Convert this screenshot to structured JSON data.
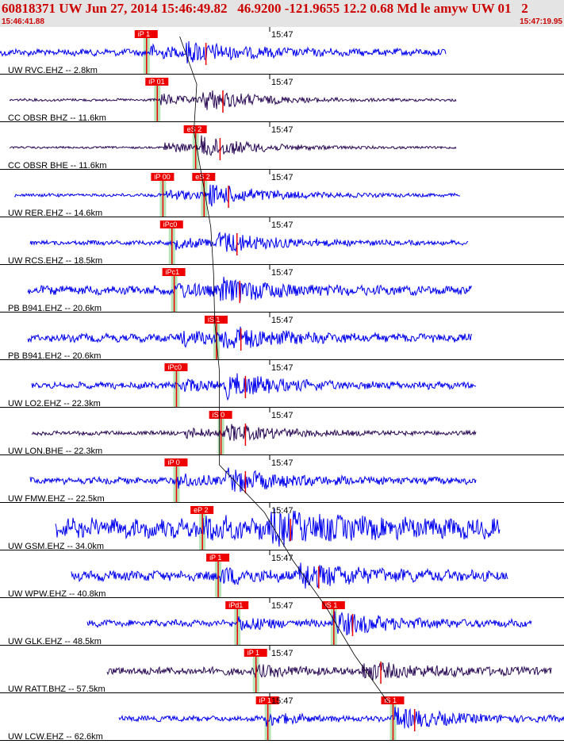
{
  "header": {
    "title": "60818371 UW Jun 27, 2014 15:46:49.82   46.9200 -121.9655 12.2 0.68 Md le amyw UW 01   2",
    "start_time": "15:46:41.88",
    "end_time": "15:47:19.95"
  },
  "colors": {
    "header_bg": "#e4e4e4",
    "header_text": "#cc0000",
    "trace_blue": "#0000ee",
    "trace_purple": "#2a0a55",
    "pick_red": "#ee0000",
    "pick_window": "#b7e4b7"
  },
  "traces": [
    {
      "label": "UW RVC.EHZ -- 2.8km",
      "minute": "15:47",
      "color": "blue",
      "amp": 0.35,
      "noise": 0.12,
      "xstart": 0,
      "xend": 562,
      "onset_p": 0.265,
      "onset_s": 0.33,
      "picks": [
        {
          "text": "iP 1",
          "x": 0.243,
          "type": "P"
        }
      ]
    },
    {
      "label": "CC OBSR BHZ -- 11.6km",
      "minute": "15:47",
      "color": "purple",
      "amp": 0.4,
      "noise": 0.05,
      "xstart": 12,
      "xend": 575,
      "onset_p": 0.285,
      "onset_s": 0.36,
      "picks": [
        {
          "text": "iP 01",
          "x": 0.262,
          "type": "P"
        }
      ]
    },
    {
      "label": "CC OBSR BHE -- 11.6km",
      "minute": "15:47",
      "color": "purple",
      "amp": 0.4,
      "noise": 0.04,
      "xstart": 12,
      "xend": 575,
      "onset_p": 0.29,
      "onset_s": 0.355,
      "picks": [
        {
          "text": "eS 2",
          "x": 0.33,
          "type": "S"
        }
      ]
    },
    {
      "label": "UW RER.EHZ -- 14.6km",
      "minute": "15:47",
      "color": "blue",
      "amp": 0.4,
      "noise": 0.06,
      "xstart": 18,
      "xend": 580,
      "onset_p": 0.295,
      "onset_s": 0.37,
      "picks": [
        {
          "text": "iP 00",
          "x": 0.272,
          "type": "P"
        },
        {
          "text": "eS 2",
          "x": 0.345,
          "type": "S"
        }
      ]
    },
    {
      "label": "UW RCS.EHZ -- 18.5km",
      "minute": "15:47",
      "color": "blue",
      "amp": 0.4,
      "noise": 0.08,
      "xstart": 38,
      "xend": 590,
      "onset_p": 0.31,
      "onset_s": 0.385,
      "picks": [
        {
          "text": "iPc0",
          "x": 0.288,
          "type": "P"
        }
      ]
    },
    {
      "label": "PB B941.EHZ -- 20.6km",
      "minute": "15:47",
      "color": "blue",
      "amp": 0.38,
      "noise": 0.16,
      "xstart": 35,
      "xend": 595,
      "onset_p": 0.315,
      "onset_s": 0.39,
      "picks": [
        {
          "text": "iPc1",
          "x": 0.292,
          "type": "P"
        }
      ]
    },
    {
      "label": "PB B941.EH2 -- 20.6km",
      "minute": "15:47",
      "color": "blue",
      "amp": 0.4,
      "noise": 0.14,
      "xstart": 35,
      "xend": 595,
      "onset_p": 0.32,
      "onset_s": 0.392,
      "picks": [
        {
          "text": "iS 1",
          "x": 0.367,
          "type": "S"
        }
      ]
    },
    {
      "label": "UW LO2.EHZ -- 22.3km",
      "minute": "15:47",
      "color": "blue",
      "amp": 0.4,
      "noise": 0.12,
      "xstart": 40,
      "xend": 600,
      "onset_p": 0.32,
      "onset_s": 0.4,
      "picks": [
        {
          "text": "iPc0",
          "x": 0.296,
          "type": "P"
        }
      ]
    },
    {
      "label": "UW LON.BHE -- 22.3km",
      "minute": "15:47",
      "color": "purple",
      "amp": 0.3,
      "noise": 0.08,
      "xstart": 40,
      "xend": 600,
      "onset_p": 0.33,
      "onset_s": 0.4,
      "picks": [
        {
          "text": "iS 0",
          "x": 0.375,
          "type": "S"
        }
      ]
    },
    {
      "label": "UW FMW.EHZ -- 22.5km",
      "minute": "15:47",
      "color": "blue",
      "amp": 0.4,
      "noise": 0.12,
      "xstart": 38,
      "xend": 600,
      "onset_p": 0.315,
      "onset_s": 0.4,
      "picks": [
        {
          "text": "iP 0",
          "x": 0.296,
          "type": "P"
        }
      ]
    },
    {
      "label": "UW GSM.EHZ -- 34.0km",
      "minute": "15:47",
      "color": "blue",
      "amp": 0.45,
      "noise": 0.35,
      "xstart": 70,
      "xend": 630,
      "onset_p": 0.36,
      "onset_s": 0.48,
      "picks": [
        {
          "text": "eP 2",
          "x": 0.342,
          "type": "P"
        }
      ]
    },
    {
      "label": "UW WPW.EHZ -- 40.8km",
      "minute": "15:47",
      "color": "blue",
      "amp": 0.45,
      "noise": 0.18,
      "xstart": 90,
      "xend": 640,
      "onset_p": 0.39,
      "onset_s": 0.53,
      "picks": [
        {
          "text": "iP 1",
          "x": 0.37,
          "type": "P"
        }
      ]
    },
    {
      "label": "UW GLK.EHZ -- 48.5km",
      "minute": "15:47",
      "color": "blue",
      "amp": 0.45,
      "noise": 0.12,
      "xstart": 110,
      "xend": 670,
      "onset_p": 0.42,
      "onset_s": 0.59,
      "picks": [
        {
          "text": "iPd1",
          "x": 0.404,
          "type": "P"
        },
        {
          "text": "iS 1",
          "x": 0.575,
          "type": "S"
        }
      ]
    },
    {
      "label": "UW RATT.BHZ -- 57.5km",
      "minute": "15:47",
      "color": "purple",
      "amp": 0.3,
      "noise": 0.15,
      "xstart": 135,
      "xend": 695,
      "onset_p": 0.45,
      "onset_s": 0.64,
      "picks": [
        {
          "text": "iP 1",
          "x": 0.437,
          "type": "P"
        }
      ]
    },
    {
      "label": "UW LCW.EHZ -- 62.6km",
      "minute": "15:47",
      "color": "blue",
      "amp": 0.4,
      "noise": 0.1,
      "xstart": 150,
      "xend": 711,
      "onset_p": 0.47,
      "onset_s": 0.7,
      "picks": [
        {
          "text": "iP 1",
          "x": 0.458,
          "type": "P"
        },
        {
          "text": "iS 1",
          "x": 0.68,
          "type": "S"
        }
      ]
    }
  ]
}
